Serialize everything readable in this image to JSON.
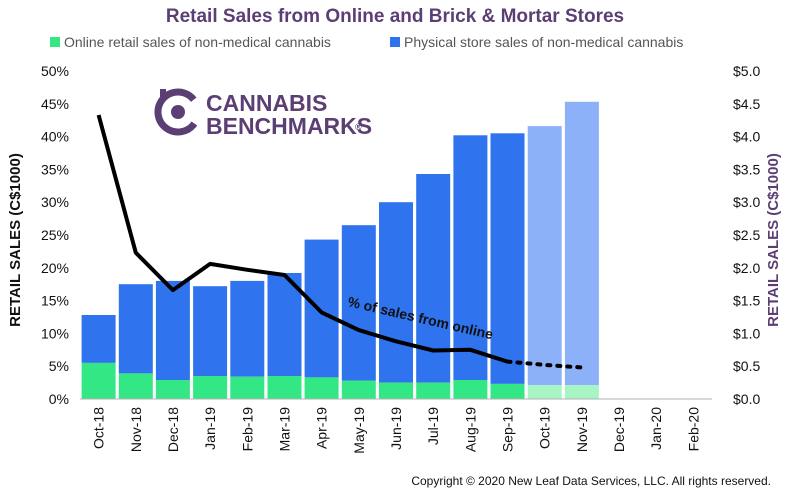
{
  "chart_data": {
    "type": "bar",
    "title": "Retail Sales from Online and Brick & Mortar Stores",
    "categories": [
      "Oct-18",
      "Nov-18",
      "Dec-18",
      "Jan-19",
      "Feb-19",
      "Mar-19",
      "Apr-19",
      "May-19",
      "Jun-19",
      "Jul-19",
      "Aug-19",
      "Sep-19",
      "Oct-19",
      "Nov-19",
      "Dec-19",
      "Jan-20",
      "Feb-20"
    ],
    "stacked": true,
    "ylabel": "RETAIL SALES (C$1000)",
    "y2label": "RETAIL SALES (C$1000)",
    "ylim": [
      0,
      0.5
    ],
    "y2lim": [
      0,
      5.0
    ],
    "yticks": [
      "0%",
      "5%",
      "10%",
      "15%",
      "20%",
      "25%",
      "30%",
      "35%",
      "40%",
      "45%",
      "50%"
    ],
    "y2ticks": [
      "$0.0",
      "$0.5",
      "$1.0",
      "$1.5",
      "$2.0",
      "$2.5",
      "$3.0",
      "$3.5",
      "$4.0",
      "$4.5",
      "$5.0"
    ],
    "series": [
      {
        "name": "Online retail sales of non-medical cannabis",
        "axis": "right",
        "color": "#33e884",
        "projected_color": "#a7f5c4",
        "values": [
          0.55,
          0.39,
          0.29,
          0.35,
          0.34,
          0.35,
          0.33,
          0.28,
          0.25,
          0.25,
          0.29,
          0.23,
          0.21,
          0.21,
          null,
          null,
          null
        ]
      },
      {
        "name": "Physical store sales of non-medical cannabis",
        "axis": "right",
        "color": "#2f73ee",
        "projected_color": "#8db1f9",
        "values": [
          0.73,
          1.36,
          1.51,
          1.37,
          1.46,
          1.57,
          2.1,
          2.37,
          2.75,
          3.18,
          3.73,
          3.82,
          3.95,
          4.32,
          null,
          null,
          null
        ]
      },
      {
        "name": "% of sales from online",
        "axis": "left",
        "type": "line",
        "color": "#000000",
        "values": [
          0.433,
          0.223,
          0.166,
          0.206,
          0.197,
          0.189,
          0.132,
          0.105,
          0.088,
          0.074,
          0.075,
          0.057,
          0.052,
          0.048,
          null,
          null,
          null
        ]
      }
    ],
    "projected_from_index": 12,
    "annotation": "% of sales from online",
    "legend_position": "top",
    "grid": false
  },
  "logo": {
    "line1": "CANNABIS",
    "line2": "BENCHMARKS",
    "mark": "®",
    "color": "#5b3f74"
  },
  "copyright": "Copyright © 2020 New Leaf Data Services, LLC.  All rights reserved."
}
